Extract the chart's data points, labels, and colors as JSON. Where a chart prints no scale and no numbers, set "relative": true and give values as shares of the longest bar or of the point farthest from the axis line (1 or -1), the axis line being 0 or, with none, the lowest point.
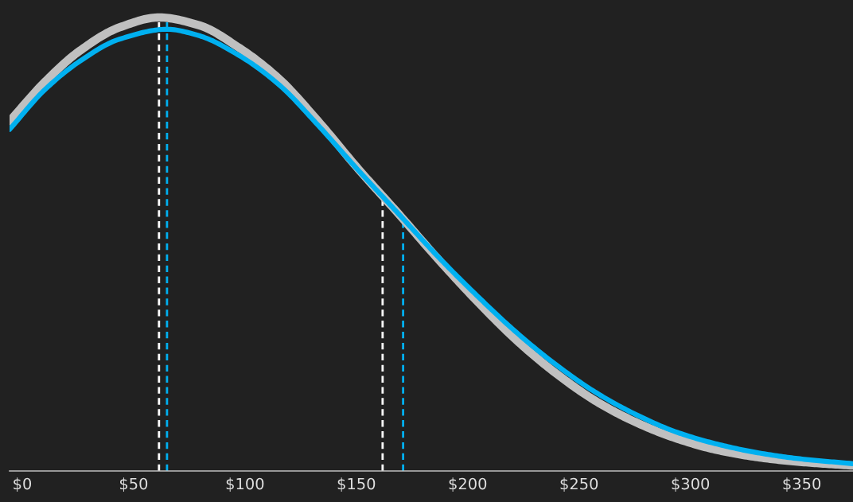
{
  "chart_data": {
    "type": "line",
    "relative": true,
    "x": [
      -5.7,
      10,
      25.7,
      43.6,
      61.4,
      79.3,
      97.1,
      115,
      132.9,
      150.7,
      168.6,
      186.4,
      204.3,
      222,
      240,
      257.9,
      275.7,
      293.6,
      311.4,
      329.3,
      347.1,
      372.9
    ],
    "series": [
      {
        "color": "#c0c0c0",
        "values": [
          0.771,
          0.857,
          0.926,
          0.978,
          1.0,
          0.983,
          0.934,
          0.866,
          0.771,
          0.667,
          0.569,
          0.469,
          0.374,
          0.288,
          0.214,
          0.153,
          0.107,
          0.072,
          0.047,
          0.031,
          0.021,
          0.012
        ]
      },
      {
        "color": "#00b0f0",
        "x": [
          -5.7,
          10,
          25.7,
          43.6,
          65,
          79.3,
          97.1,
          115,
          132.9,
          150.7,
          168.6,
          186.4,
          204.3,
          222,
          240,
          257.9,
          275.7,
          293.6,
          311.4,
          329.3,
          347.1,
          372.9
        ],
        "values": [
          0.753,
          0.84,
          0.903,
          0.952,
          0.974,
          0.96,
          0.917,
          0.853,
          0.762,
          0.664,
          0.569,
          0.474,
          0.386,
          0.305,
          0.233,
          0.172,
          0.124,
          0.086,
          0.06,
          0.041,
          0.028,
          0.016
        ]
      }
    ],
    "xlim": [
      -5.7,
      373
    ],
    "xticks": [
      {
        "value": 0,
        "label": "$0"
      },
      {
        "value": 50,
        "label": "$50"
      },
      {
        "value": 100,
        "label": "$100"
      },
      {
        "value": 150,
        "label": "$150"
      },
      {
        "value": 200,
        "label": "$200"
      },
      {
        "value": 250,
        "label": "$250"
      },
      {
        "value": 300,
        "label": "$300"
      },
      {
        "value": 350,
        "label": "$350"
      }
    ],
    "ref_lines": [
      {
        "axis": "x",
        "value": 61.4,
        "color": "#ffffff",
        "line_style": "dashed"
      },
      {
        "axis": "x",
        "value": 65,
        "color": "#00b0f0",
        "line_style": "dashed"
      },
      {
        "axis": "x",
        "value": 161.8,
        "color": "#ffffff",
        "line_style": "dashed"
      },
      {
        "axis": "x",
        "value": 171,
        "color": "#00b0f0",
        "line_style": "dashed"
      }
    ],
    "grid": false,
    "tick_labels": "x"
  }
}
